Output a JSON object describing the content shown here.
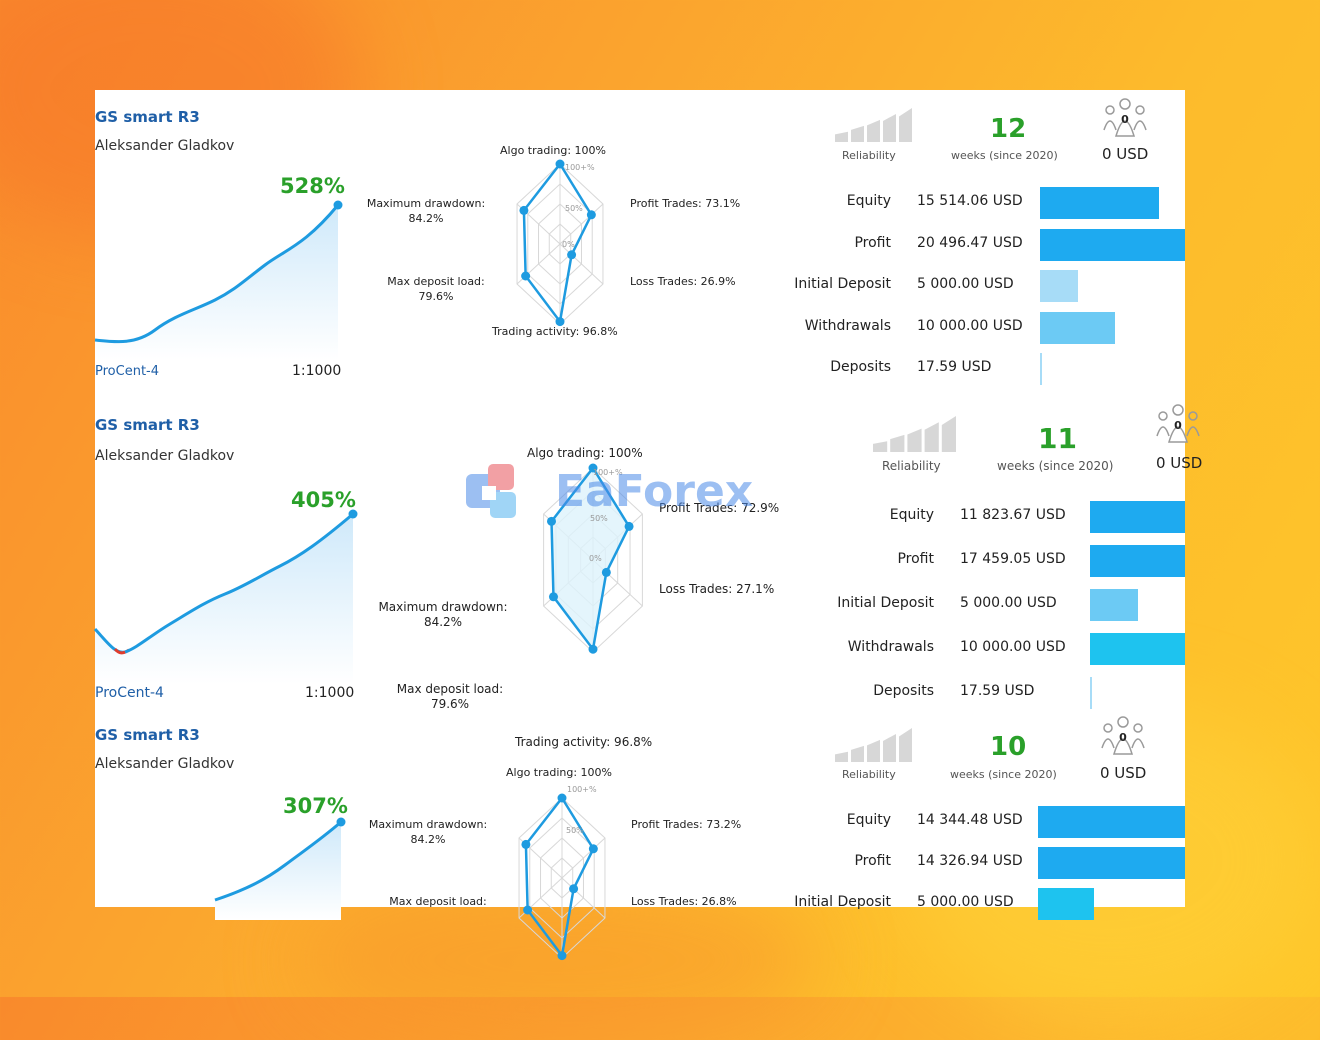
{
  "cards": [
    {
      "title": "GS smart R3",
      "author": "Aleksander Gladkov",
      "growth": "528%",
      "server": "ProCent-4",
      "leverage": "1:1000",
      "radar": {
        "algo": "Algo trading: 100%",
        "profit": "Profit Trades: 73.1%",
        "loss": "Loss Trades: 26.9%",
        "activity": "Trading activity: 96.8%",
        "load": "Max deposit load:",
        "load_val": "79.6%",
        "drawdown": "Maximum drawdown:",
        "drawdown_val": "84.2%",
        "ring_100": "100+%",
        "ring_50": "50%",
        "ring_0": "0%"
      },
      "reliability": "Reliability",
      "weeks": "12",
      "weeks_label": "weeks (since 2020)",
      "subscribers": "0",
      "usd": "0 USD",
      "stats": [
        {
          "name": "Equity",
          "value": "15 514.06 USD",
          "fill": 0.82,
          "color": "#1eaaf0"
        },
        {
          "name": "Profit",
          "value": "20 496.47 USD",
          "fill": 1.0,
          "color": "#1eaaf0"
        },
        {
          "name": "Initial Deposit",
          "value": "5 000.00 USD",
          "fill": 0.26,
          "color": "#a7dcf7"
        },
        {
          "name": "Withdrawals",
          "value": "10 000.00 USD",
          "fill": 0.52,
          "color": "#6ccaf4"
        },
        {
          "name": "Deposits",
          "value": "17.59 USD",
          "fill": 0.01,
          "color": "#a7dcf7"
        }
      ]
    },
    {
      "title": "GS smart R3",
      "author": "Aleksander Gladkov",
      "growth": "405%",
      "server": "ProCent-4",
      "leverage": "1:1000",
      "radar": {
        "algo": "Algo trading: 100%",
        "profit": "Profit Trades: 72.9%",
        "loss": "Loss Trades: 27.1%",
        "activity": "Trading activity: 96.8%",
        "load": "Max deposit load:",
        "load_val": "79.6%",
        "drawdown": "Maximum drawdown:",
        "drawdown_val": "84.2%",
        "ring_100": "100+%",
        "ring_50": "50%",
        "ring_0": "0%"
      },
      "reliability": "Reliability",
      "weeks": "11",
      "weeks_label": "weeks (since 2020)",
      "subscribers": "0",
      "usd": "0 USD",
      "stats": [
        {
          "name": "Equity",
          "value": "11 823.67 USD",
          "fill": 1.0,
          "color": "#1eaaf0"
        },
        {
          "name": "Profit",
          "value": "17 459.05 USD",
          "fill": 1.0,
          "color": "#1eaaf0"
        },
        {
          "name": "Initial Deposit",
          "value": "5 000.00 USD",
          "fill": 0.5,
          "color": "#6ccaf4"
        },
        {
          "name": "Withdrawals",
          "value": "10 000.00 USD",
          "fill": 1.0,
          "color": "#1ec3ef"
        },
        {
          "name": "Deposits",
          "value": "17.59 USD",
          "fill": 0.02,
          "color": "#a7dcf7"
        }
      ]
    },
    {
      "title": "GS smart R3",
      "author": "Aleksander Gladkov",
      "growth": "307%",
      "radar": {
        "algo": "Algo trading: 100%",
        "profit": "Profit Trades: 73.2%",
        "loss": "Loss Trades: 26.8%",
        "load": "Max deposit load:",
        "drawdown": "Maximum drawdown:",
        "drawdown_val": "84.2%",
        "ring_100": "100+%",
        "ring_50": "50%"
      },
      "reliability": "Reliability",
      "weeks": "10",
      "weeks_label": "weeks (since 2020)",
      "subscribers": "0",
      "usd": "0 USD",
      "stats": [
        {
          "name": "Equity",
          "value": "14 344.48 USD",
          "fill": 1.0,
          "color": "#1eaaf0"
        },
        {
          "name": "Profit",
          "value": "14 326.94 USD",
          "fill": 1.0,
          "color": "#1eaaf0"
        },
        {
          "name": "Initial Deposit",
          "value": "5 000.00 USD",
          "fill": 0.38,
          "color": "#1ec3ef"
        }
      ]
    }
  ],
  "watermark": "EaForex"
}
